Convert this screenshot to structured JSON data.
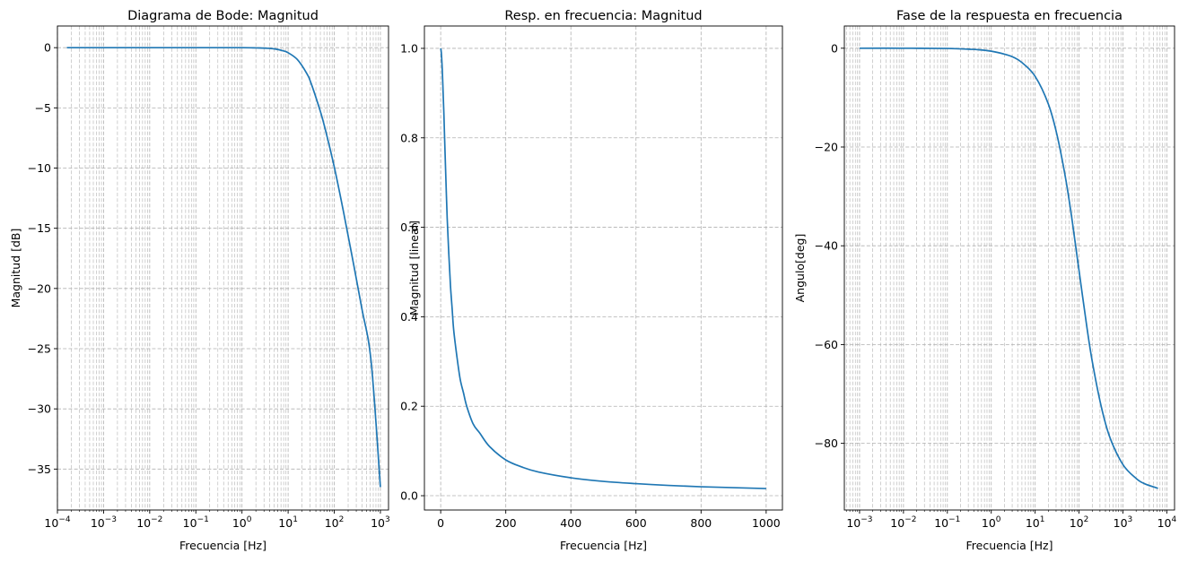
{
  "colors": {
    "line": "#1f77b4",
    "grid": "#b0b0b0"
  },
  "chart_data": [
    {
      "type": "line",
      "title": "Diagrama de Bode: Magnitud",
      "xlabel": "Frecuencia [Hz]",
      "ylabel": "Magnitud [dB]",
      "xscale": "log",
      "xlim": [
        0.0001,
        1500
      ],
      "ylim": [
        -38.4,
        1.8
      ],
      "xticks": [
        0.0001,
        0.001,
        0.01,
        0.1,
        1,
        10,
        100,
        1000
      ],
      "xtick_labels": [
        {
          "base": "10",
          "exp": "−4"
        },
        {
          "base": "10",
          "exp": "−3"
        },
        {
          "base": "10",
          "exp": "−2"
        },
        {
          "base": "10",
          "exp": "−1"
        },
        {
          "base": "10",
          "exp": "0"
        },
        {
          "base": "10",
          "exp": "1"
        },
        {
          "base": "10",
          "exp": "2"
        },
        {
          "base": "10",
          "exp": "3"
        }
      ],
      "yticks": [
        0,
        -5,
        -10,
        -15,
        -20,
        -25,
        -30,
        -35
      ],
      "ytick_labels": [
        "0",
        "−5",
        "−10",
        "−15",
        "−20",
        "−25",
        "−30",
        "−35"
      ],
      "grid": "major and minor, dashed",
      "series": [
        {
          "x": [
            0.00016,
            0.001,
            0.01,
            0.1,
            1,
            2,
            3.16,
            5,
            7.94,
            10,
            15.8,
            25,
            31.6,
            50,
            63.1,
            100,
            158,
            251,
            398,
            631,
            1000
          ],
          "y": [
            0,
            0,
            0,
            0,
            0,
            -0.02,
            -0.04,
            -0.1,
            -0.27,
            -0.42,
            -0.98,
            -2.1,
            -2.98,
            -5.3,
            -6.7,
            -9.9,
            -13.6,
            -17.6,
            -21.7,
            -26.1,
            -36.5
          ]
        }
      ]
    },
    {
      "type": "line",
      "title": "Resp. en frecuencia: Magnitud",
      "xlabel": "Frecuencia [Hz]",
      "ylabel": "Magnitud [lineal]",
      "xscale": "linear",
      "xlim": [
        -50,
        1050
      ],
      "ylim": [
        -0.032,
        1.05
      ],
      "xticks": [
        0,
        200,
        400,
        600,
        800,
        1000
      ],
      "xtick_labels": [
        "0",
        "200",
        "400",
        "600",
        "800",
        "1000"
      ],
      "yticks": [
        0.0,
        0.2,
        0.4,
        0.6,
        0.8,
        1.0
      ],
      "ytick_labels": [
        "0.0",
        "0.2",
        "0.4",
        "0.6",
        "0.8",
        "1.0"
      ],
      "grid": "major, dashed",
      "series": [
        {
          "x": [
            0,
            2,
            5,
            8,
            10,
            12,
            15,
            20,
            25,
            30,
            35,
            40,
            50,
            60,
            70,
            80,
            100,
            120,
            150,
            200,
            250,
            300,
            400,
            500,
            600,
            700,
            800,
            900,
            1000
          ],
          "y": [
            1.0,
            0.99,
            0.95,
            0.89,
            0.85,
            0.8,
            0.73,
            0.62,
            0.54,
            0.47,
            0.42,
            0.37,
            0.31,
            0.26,
            0.23,
            0.2,
            0.16,
            0.14,
            0.11,
            0.08,
            0.064,
            0.053,
            0.04,
            0.032,
            0.027,
            0.023,
            0.02,
            0.018,
            0.016
          ]
        }
      ]
    },
    {
      "type": "line",
      "title": "Fase de la respuesta en frecuencia",
      "xlabel": "Frecuencia [Hz]",
      "ylabel": "Angulo[deg]",
      "xscale": "log",
      "xlim": [
        0.00045,
        15000
      ],
      "ylim": [
        -93.5,
        4.5
      ],
      "xticks": [
        0.001,
        0.01,
        0.1,
        1,
        10,
        100,
        1000,
        10000
      ],
      "xtick_labels": [
        {
          "base": "10",
          "exp": "−3"
        },
        {
          "base": "10",
          "exp": "−2"
        },
        {
          "base": "10",
          "exp": "−1"
        },
        {
          "base": "10",
          "exp": "0"
        },
        {
          "base": "10",
          "exp": "1"
        },
        {
          "base": "10",
          "exp": "2"
        },
        {
          "base": "10",
          "exp": "3"
        },
        {
          "base": "10",
          "exp": "4"
        }
      ],
      "yticks": [
        0,
        -20,
        -40,
        -60,
        -80
      ],
      "ytick_labels": [
        "0",
        "−20",
        "−40",
        "−60",
        "−80"
      ],
      "grid": "major and minor, dashed",
      "series": [
        {
          "x": [
            0.001,
            0.01,
            0.1,
            0.3,
            0.5,
            1,
            2,
            3.16,
            5,
            10,
            20,
            31.6,
            50,
            70,
            100,
            150,
            200,
            316,
            500,
            1000,
            2000,
            3160,
            6300
          ],
          "y": [
            0,
            0,
            -0.05,
            -0.2,
            -0.3,
            -0.6,
            -1.2,
            -1.8,
            -2.9,
            -5.7,
            -11.3,
            -17.6,
            -26.6,
            -35,
            -45,
            -56.3,
            -63.4,
            -72.3,
            -78.7,
            -84.3,
            -87.1,
            -88.2,
            -89.1
          ]
        }
      ]
    }
  ]
}
